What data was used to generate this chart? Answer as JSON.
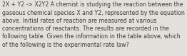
{
  "text_line1": "2X + Y2 -> X2Y2 A chemist is studying the reaction between the",
  "text_line2": "gaseous chemical species X and Y2, represented by the equation",
  "text_line3": "above. Initial rates of reaction are measured at various",
  "text_line4": "concentrations of reactants. The results are recorded in the",
  "text_line5": "following table. Given the information in the table above, which",
  "text_line6": "of the following is the experimental rate law?",
  "background_color": "#e3e1dc",
  "text_color": "#3d3b38",
  "font_size": 5.6,
  "fig_width": 2.62,
  "fig_height": 0.79,
  "dpi": 100
}
